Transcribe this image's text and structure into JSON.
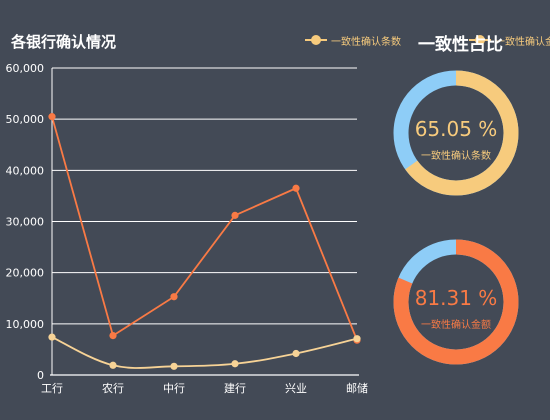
{
  "chart_title": "各银行确认情况",
  "ratio_title": "一致性占比",
  "legend": [
    {
      "label": "一致性确认条数",
      "color": "#f7cb7d"
    },
    {
      "label": "一致性确认金额",
      "color": "#f7cb7d"
    }
  ],
  "chart_data": {
    "type": "line",
    "categories": [
      "工行",
      "农行",
      "中行",
      "建行",
      "兴业",
      "邮储"
    ],
    "ylim": [
      0,
      60000
    ],
    "y_ticks": [
      "0",
      "10,000",
      "20,000",
      "30,000",
      "40,000",
      "50,000",
      "60,000"
    ],
    "y_tick_values": [
      0,
      10000,
      20000,
      30000,
      40000,
      50000,
      60000
    ],
    "series": [
      {
        "name": "一致性确认金额",
        "color": "#f97a45",
        "smooth": false,
        "values": [
          50500,
          7700,
          15300,
          31200,
          36500,
          6800
        ]
      },
      {
        "name": "一致性确认条数",
        "color": "#f7d396",
        "smooth": true,
        "values": [
          7400,
          1900,
          1700,
          2200,
          4200,
          7100
        ]
      }
    ]
  },
  "donuts": [
    {
      "name": "一致性确认条数",
      "percent": 65.05,
      "value_text": "65.05 %",
      "label": "一致性确认条数",
      "main_color": "#f7cb7d",
      "rest_color": "#8ecdf7",
      "text_color": "#f7cb7d",
      "label_color": "#f7cb7d"
    },
    {
      "name": "一致性确认金额",
      "percent": 81.31,
      "value_text": "81.31 %",
      "label": "一致性确认金额",
      "main_color": "#f97a45",
      "rest_color": "#8ecdf7",
      "text_color": "#f97a45",
      "label_color": "#f97a45"
    }
  ]
}
